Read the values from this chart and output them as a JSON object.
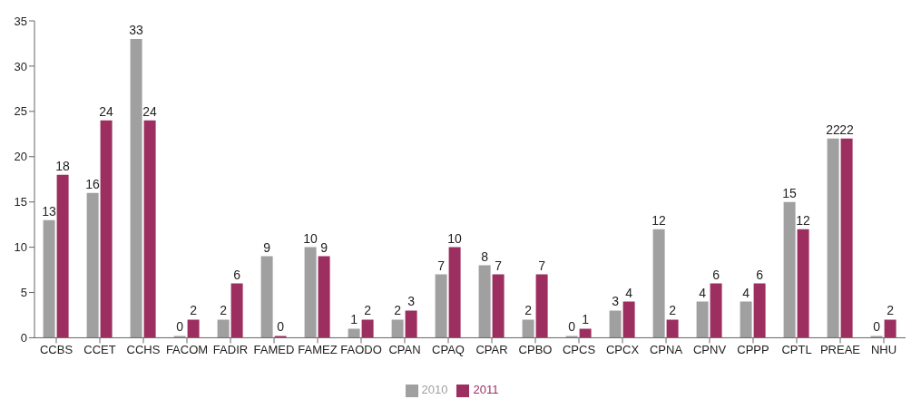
{
  "chart_data": {
    "type": "bar",
    "categories": [
      "CCBS",
      "CCET",
      "CCHS",
      "FACOM",
      "FADIR",
      "FAMED",
      "FAMEZ",
      "FAODO",
      "CPAN",
      "CPAQ",
      "CPAR",
      "CPBO",
      "CPCS",
      "CPCX",
      "CPNA",
      "CPNV",
      "CPPP",
      "CPTL",
      "PREAE",
      "NHU"
    ],
    "series": [
      {
        "name": "2010",
        "color": "#a0a0a0",
        "values": [
          13,
          16,
          33,
          0,
          2,
          9,
          10,
          1,
          2,
          7,
          8,
          2,
          0,
          3,
          12,
          4,
          4,
          15,
          22,
          0
        ]
      },
      {
        "name": "2011",
        "color": "#9c2f60",
        "values": [
          18,
          24,
          24,
          2,
          6,
          0,
          9,
          2,
          3,
          10,
          7,
          7,
          1,
          4,
          2,
          6,
          6,
          12,
          22,
          2
        ]
      }
    ],
    "ylim": [
      0,
      35
    ],
    "yticks": [
      0,
      5,
      10,
      15,
      20,
      25,
      30,
      35
    ],
    "grid": false,
    "legend": "bottom",
    "data_labels": true
  }
}
